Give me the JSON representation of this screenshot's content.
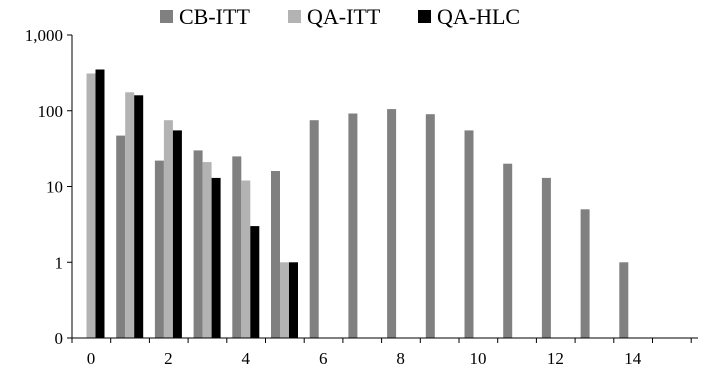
{
  "chart_data": {
    "type": "bar",
    "title": "",
    "xlabel": "",
    "ylabel": "",
    "yscale": "log",
    "ylim": [
      0,
      1000
    ],
    "y_tick_labels": [
      "0",
      "1",
      "10",
      "100",
      "1,000"
    ],
    "x_tick_labels": [
      "0",
      "2",
      "4",
      "6",
      "8",
      "10",
      "12",
      "14"
    ],
    "legend_position": "top",
    "grid": false,
    "series": [
      {
        "name": "CB-ITT",
        "color": "#808080",
        "values": [
          null,
          47,
          22,
          30,
          25,
          16,
          75,
          92,
          105,
          90,
          55,
          20,
          13,
          5,
          1
        ]
      },
      {
        "name": "QA-ITT",
        "color": "#b3b3b3",
        "values": [
          310,
          175,
          75,
          21,
          12,
          1,
          null,
          null,
          null,
          null,
          null,
          null,
          null,
          null,
          null
        ]
      },
      {
        "name": "QA-HLC",
        "color": "#000000",
        "values": [
          350,
          160,
          55,
          13,
          3,
          1,
          null,
          null,
          null,
          null,
          null,
          null,
          null,
          null,
          null
        ]
      }
    ],
    "x": [
      0,
      1,
      2,
      3,
      4,
      5,
      6,
      7,
      8,
      9,
      10,
      11,
      12,
      13,
      14
    ]
  }
}
